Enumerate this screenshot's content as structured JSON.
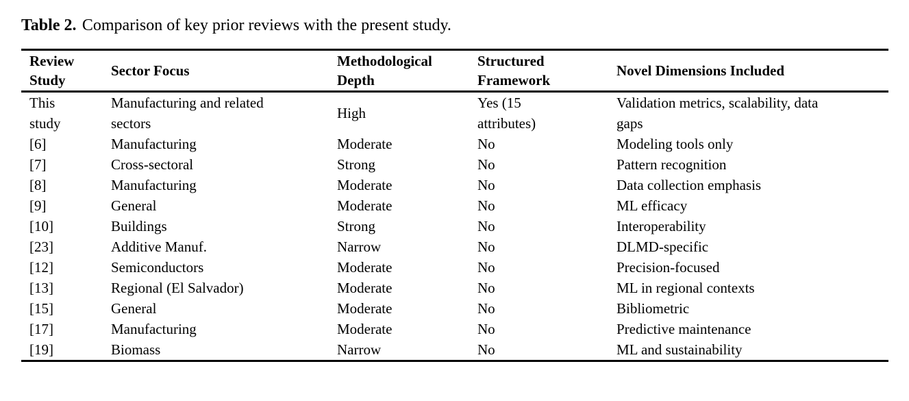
{
  "page": {
    "background_color": "#ffffff",
    "text_color": "#000000",
    "rule_color": "#000000"
  },
  "caption": {
    "label": "Table 2.",
    "text": "Comparison of key prior reviews with the present study."
  },
  "table": {
    "columns": [
      {
        "label": "Review\nStudy"
      },
      {
        "label": "Sector Focus"
      },
      {
        "label": "Methodological\nDepth"
      },
      {
        "label": "Structured\nFramework"
      },
      {
        "label": "Novel Dimensions Included"
      }
    ],
    "rows": [
      [
        "This\nstudy",
        "Manufacturing and related\nsectors",
        "High",
        "Yes (15\nattributes)",
        "Validation metrics, scalability, data\ngaps"
      ],
      [
        "[6]",
        "Manufacturing",
        "Moderate",
        "No",
        "Modeling tools only"
      ],
      [
        "[7]",
        "Cross-sectoral",
        "Strong",
        "No",
        "Pattern recognition"
      ],
      [
        "[8]",
        "Manufacturing",
        "Moderate",
        "No",
        "Data collection emphasis"
      ],
      [
        "[9]",
        "General",
        "Moderate",
        "No",
        "ML efficacy"
      ],
      [
        "[10]",
        "Buildings",
        "Strong",
        "No",
        "Interoperability"
      ],
      [
        "[23]",
        "Additive Manuf.",
        "Narrow",
        "No",
        "DLMD-specific"
      ],
      [
        "[12]",
        "Semiconductors",
        "Moderate",
        "No",
        "Precision-focused"
      ],
      [
        "[13]",
        "Regional (El Salvador)",
        "Moderate",
        "No",
        "ML in regional contexts"
      ],
      [
        "[15]",
        "General",
        "Moderate",
        "No",
        "Bibliometric"
      ],
      [
        "[17]",
        "Manufacturing",
        "Moderate",
        "No",
        "Predictive maintenance"
      ],
      [
        "[19]",
        "Biomass",
        "Narrow",
        "No",
        "ML and sustainability"
      ]
    ]
  }
}
